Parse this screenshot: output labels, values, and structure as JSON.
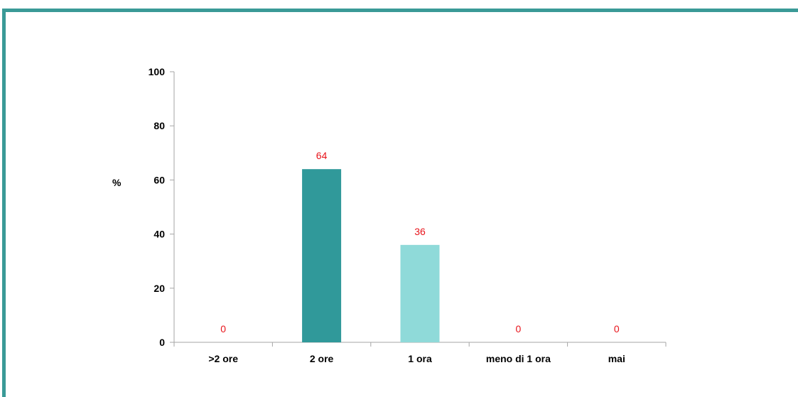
{
  "chart_data": {
    "type": "bar",
    "title": "",
    "xlabel": "",
    "ylabel": "%",
    "categories": [
      ">2 ore",
      "2 ore",
      "1 ora",
      "meno di 1 ora",
      "mai"
    ],
    "values": [
      0,
      64,
      36,
      0,
      0
    ],
    "data_labels": [
      "0",
      "64",
      "36",
      "0",
      "0"
    ],
    "bar_colors": [
      "#30999a",
      "#30999a",
      "#8fdad9",
      "#8fdad9",
      "#8fdad9"
    ],
    "data_label_color": "#e8141b",
    "ylim": [
      0,
      100
    ],
    "yticks": [
      0,
      20,
      40,
      60,
      80,
      100
    ],
    "ytick_labels": [
      "0",
      "20",
      "40",
      "60",
      "80",
      "100"
    ],
    "grid": false,
    "legend": "none"
  },
  "colors": {
    "frame": "#3a9a97",
    "axis": "#a6a6a6"
  }
}
